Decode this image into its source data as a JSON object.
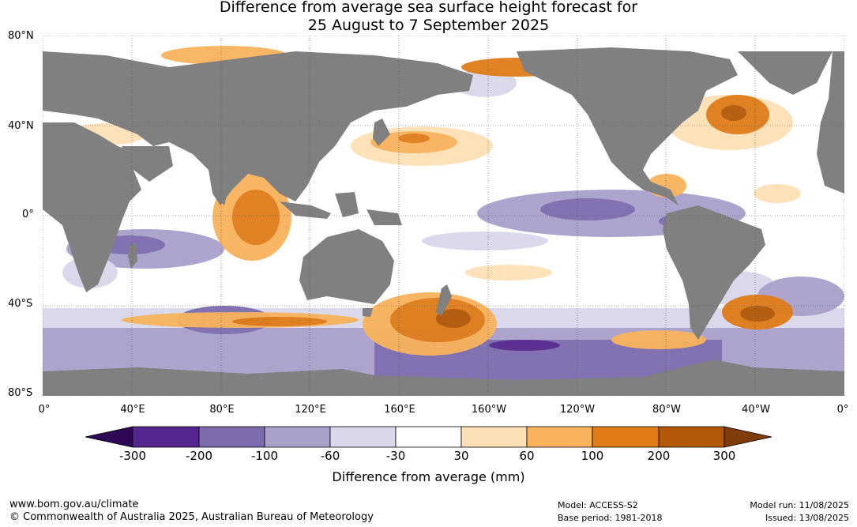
{
  "header": {
    "title_line1": "Difference from average sea surface height forecast for",
    "title_line2": "25 August to 7 September 2025"
  },
  "map": {
    "lat_labels": [
      "80°N",
      "40°N",
      "0°",
      "40°S",
      "80°S"
    ],
    "lon_labels": [
      "0°",
      "40°E",
      "80°E",
      "120°E",
      "160°E",
      "160°W",
      "120°W",
      "80°W",
      "40°W",
      "0°"
    ],
    "land_color": "#808080",
    "ocean_base_color": "#ffffff"
  },
  "legend": {
    "title": "Difference from average (mm)",
    "tick_labels": [
      "-300",
      "-200",
      "-100",
      "-60",
      "-30",
      "30",
      "60",
      "100",
      "200",
      "300"
    ],
    "colors": [
      "#2e0854",
      "#54278f",
      "#7d6bad",
      "#a9a0cc",
      "#d9d8ea",
      "#ffffff",
      "#fde0b6",
      "#f8b35c",
      "#df7c18",
      "#b35806",
      "#7f3b08"
    ]
  },
  "footer": {
    "website": "www.bom.gov.au/climate",
    "copyright": "© Commonwealth of Australia 2025, Australian Bureau of Meteorology",
    "model": "Model: ACCESS-S2",
    "base_period": "Base period: 1981-2018",
    "model_run": "Model run: 11/08/2025",
    "issued": "Issued: 13/08/2025"
  }
}
